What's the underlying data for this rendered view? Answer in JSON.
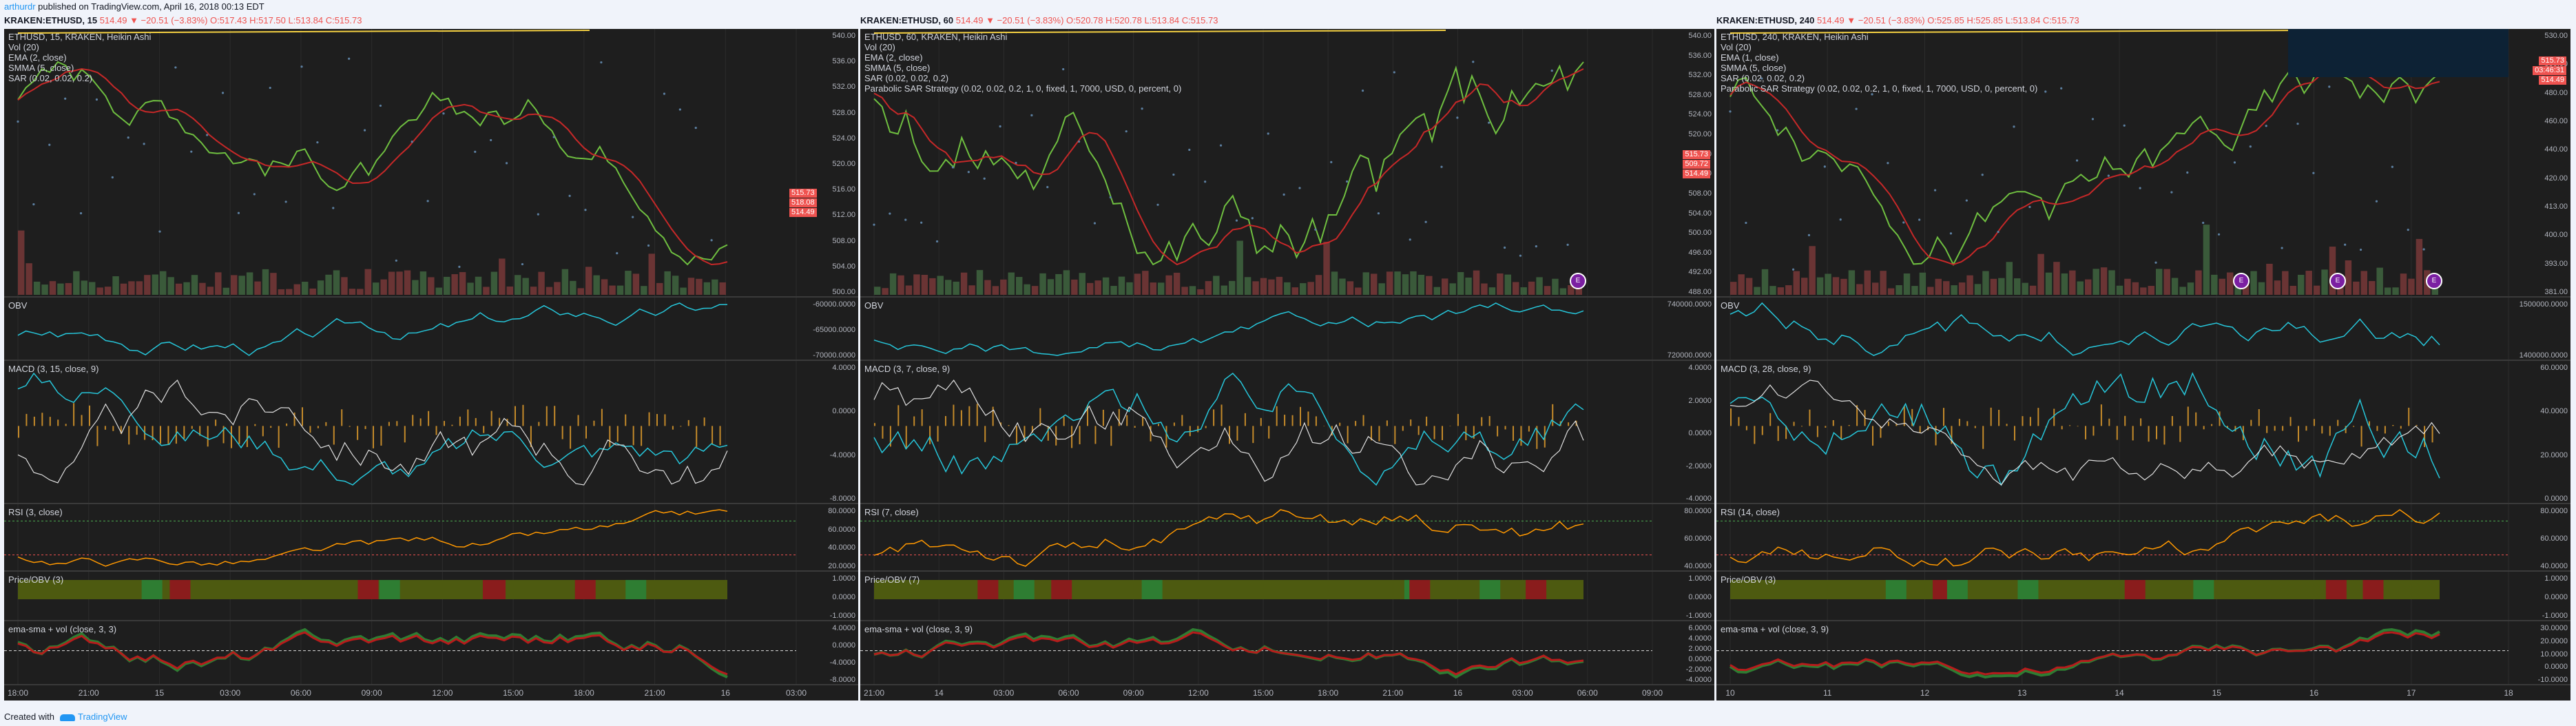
{
  "header": {
    "user": "arthurdr",
    "published": "published on TradingView.com, April 16, 2018 00:13 EDT"
  },
  "panels": [
    {
      "symbol": "KRAKEN:ETHUSD, 15",
      "quote": "514.49 ▼ −20.51 (−3.83%) O:517.43 H:517.50 L:513.84 C:515.73",
      "main_labels": [
        "ETHUSD, 15, KRAKEN, Heikin Ashi",
        "Vol (20)",
        "EMA (2, close)",
        "SMMA (5, close)",
        "SAR (0.02, 0.02, 0.2)"
      ],
      "price_axis": [
        "540.00",
        "536.00",
        "532.00",
        "528.00",
        "524.00",
        "520.00",
        "516.00",
        "512.00",
        "508.00",
        "504.00",
        "500.00"
      ],
      "price_tags": [
        "515.73",
        "518.08",
        "514.49"
      ],
      "obv": "OBV",
      "obv_axis": [
        "-60000.0000",
        "-65000.0000",
        "-70000.0000"
      ],
      "macd": "MACD (3, 15, close, 9)",
      "macd_axis": [
        "4.0000",
        "0.0000",
        "-4.0000",
        "-8.0000"
      ],
      "rsi": "RSI (3, close)",
      "rsi_axis": [
        "80.0000",
        "60.0000",
        "40.0000",
        "20.0000"
      ],
      "pobv": "Price/OBV (3)",
      "pobv_axis": [
        "1.0000",
        "0.0000",
        "-1.0000"
      ],
      "emasma": "ema-sma + vol (close, 3, 3)",
      "emasma_axis": [
        "4.0000",
        "0.0000",
        "-4.0000",
        "-8.0000"
      ],
      "x_ticks": [
        "18:00",
        "21:00",
        "15",
        "03:00",
        "06:00",
        "09:00",
        "12:00",
        "15:00",
        "18:00",
        "21:00",
        "16",
        "03:00"
      ]
    },
    {
      "symbol": "KRAKEN:ETHUSD, 60",
      "quote": "514.49 ▼ −20.51 (−3.83%) O:520.78 H:520.78 L:513.84 C:515.73",
      "main_labels": [
        "ETHUSD, 60, KRAKEN, Heikin Ashi",
        "Vol (20)",
        "EMA (2, close)",
        "SMMA (5, close)",
        "SAR (0.02, 0.02, 0.2)",
        "Parabolic SAR Strategy (0.02, 0.02, 0.2, 1, 0, fixed, 1, 7000, USD, 0, percent, 0)"
      ],
      "price_axis": [
        "540.00",
        "536.00",
        "532.00",
        "528.00",
        "524.00",
        "520.00",
        "516.00",
        "512.00",
        "508.00",
        "504.00",
        "500.00",
        "496.00",
        "492.00",
        "488.00"
      ],
      "price_tags": [
        "515.73",
        "509.72",
        "514.49"
      ],
      "obv": "OBV",
      "obv_axis": [
        "740000.0000",
        "720000.0000"
      ],
      "macd": "MACD (3, 7, close, 9)",
      "macd_axis": [
        "4.0000",
        "2.0000",
        "0.0000",
        "-2.0000",
        "-4.0000"
      ],
      "rsi": "RSI (7, close)",
      "rsi_axis": [
        "80.0000",
        "60.0000",
        "40.0000"
      ],
      "pobv": "Price/OBV (7)",
      "pobv_axis": [
        "1.0000",
        "0.0000",
        "-1.0000"
      ],
      "emasma": "ema-sma + vol (close, 3, 9)",
      "emasma_axis": [
        "6.0000",
        "4.0000",
        "2.0000",
        "0.0000",
        "-2.0000",
        "-4.0000"
      ],
      "x_ticks": [
        "21:00",
        "14",
        "03:00",
        "06:00",
        "09:00",
        "12:00",
        "15:00",
        "18:00",
        "21:00",
        "16",
        "03:00",
        "06:00",
        "09:00"
      ]
    },
    {
      "symbol": "KRAKEN:ETHUSD, 240",
      "quote": "514.49 ▼ −20.51 (−3.83%) O:525.85 H:525.85 L:513.84 C:515.73",
      "main_labels": [
        "ETHUSD, 240, KRAKEN, Heikin Ashi",
        "Vol (20)",
        "EMA (1, close)",
        "SMMA (5, close)",
        "SAR (0.02, 0.02, 0.2)",
        "Parabolic SAR Strategy (0.02, 0.02, 0.2, 1, 0, fixed, 1, 7000, USD, 0, percent, 0)"
      ],
      "price_axis": [
        "530.00",
        "500.00",
        "480.00",
        "460.00",
        "440.00",
        "420.00",
        "413.00",
        "400.00",
        "393.00",
        "381.00"
      ],
      "price_tags": [
        "515.73",
        "03:46:31",
        "514.49"
      ],
      "obv": "OBV",
      "obv_axis": [
        "1500000.0000",
        "1400000.0000"
      ],
      "macd": "MACD (3, 28, close, 9)",
      "macd_axis": [
        "60.0000",
        "40.0000",
        "20.0000",
        "0.0000"
      ],
      "rsi": "RSI (14, close)",
      "rsi_axis": [
        "80.0000",
        "60.0000",
        "40.0000"
      ],
      "pobv": "Price/OBV (3)",
      "pobv_axis": [
        "1.0000",
        "0.0000",
        "-1.0000"
      ],
      "emasma": "ema-sma + vol (close, 3, 9)",
      "emasma_axis": [
        "30.0000",
        "20.0000",
        "10.0000",
        "0.0000",
        "-10.0000"
      ],
      "x_ticks": [
        "10",
        "11",
        "12",
        "13",
        "14",
        "15",
        "16",
        "17",
        "18"
      ]
    }
  ],
  "footer": {
    "created": "Created with",
    "brand": "TradingView"
  },
  "colors": {
    "bg": "#1e1e1e",
    "green": "#4caf50",
    "red": "#ef5350",
    "ema": "#6fbf40",
    "smma": "#c62828",
    "obv": "#26c6da",
    "rsi": "#ff9800",
    "macd_signal": "#e0e0e0"
  }
}
